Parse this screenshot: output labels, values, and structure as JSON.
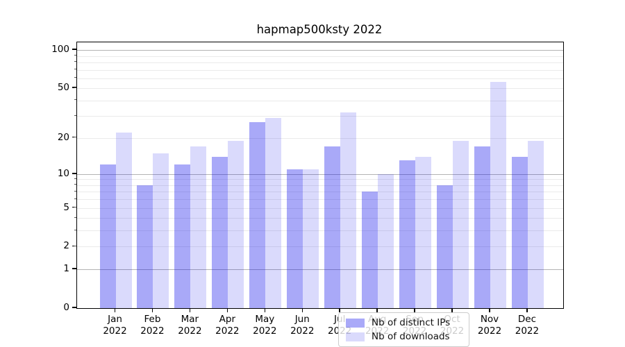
{
  "chart_data": {
    "type": "bar",
    "title": "hapmap500ksty 2022",
    "scale": "log1p",
    "ylim": [
      0,
      115
    ],
    "grid_on": true,
    "legend_position": "lower center",
    "categories": [
      {
        "month": "Jan",
        "year": "2022"
      },
      {
        "month": "Feb",
        "year": "2022"
      },
      {
        "month": "Mar",
        "year": "2022"
      },
      {
        "month": "Apr",
        "year": "2022"
      },
      {
        "month": "May",
        "year": "2022"
      },
      {
        "month": "Jun",
        "year": "2022"
      },
      {
        "month": "Jul",
        "year": "2022"
      },
      {
        "month": "Aug",
        "year": "2022"
      },
      {
        "month": "Sep",
        "year": "2022"
      },
      {
        "month": "Oct",
        "year": "2022"
      },
      {
        "month": "Nov",
        "year": "2022"
      },
      {
        "month": "Dec",
        "year": "2022"
      }
    ],
    "series": [
      {
        "name": "Nb of distinct IPs",
        "color": "rgba(10,10,235,0.35)",
        "values": [
          12,
          8,
          12,
          14,
          27,
          11,
          17,
          7,
          13,
          8,
          17,
          14
        ]
      },
      {
        "name": "Nb of downloads",
        "color": "rgba(10,10,235,0.15)",
        "values": [
          22,
          15,
          17,
          19,
          29,
          11,
          32,
          10,
          14,
          19,
          56,
          19
        ]
      }
    ],
    "yticks": [
      {
        "label": "0",
        "value": 0
      },
      {
        "label": "1",
        "value": 1
      },
      {
        "label": "2",
        "value": 2
      },
      {
        "label": "5",
        "value": 5
      },
      {
        "label": "10",
        "value": 10
      },
      {
        "label": "20",
        "value": 20
      },
      {
        "label": "50",
        "value": 50
      },
      {
        "label": "100",
        "value": 100
      }
    ],
    "grid": {
      "major_values": [
        1,
        10,
        100
      ],
      "minor_values": [
        2,
        3,
        4,
        5,
        6,
        7,
        8,
        9,
        20,
        30,
        40,
        50,
        60,
        70,
        80,
        90
      ],
      "major_color": "#b3b3b3",
      "minor_color": "#eaeaea"
    }
  }
}
